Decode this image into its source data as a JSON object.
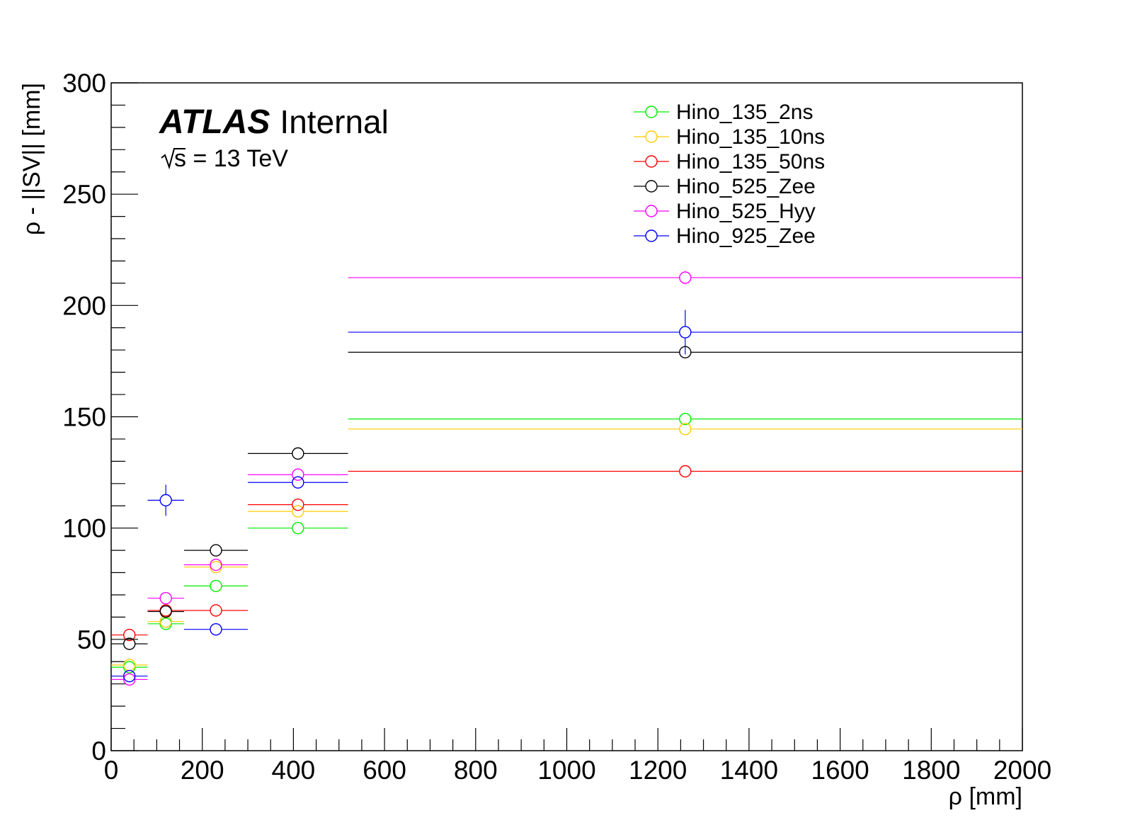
{
  "chart_data": {
    "type": "scatter",
    "xlabel": "ρ [mm]",
    "ylabel": "ρ - ||SV|| [mm]",
    "xlim": [
      0,
      2000
    ],
    "ylim": [
      0,
      300
    ],
    "x_ticks": [
      "0",
      "200",
      "400",
      "600",
      "800",
      "1000",
      "1200",
      "1400",
      "1600",
      "1800",
      "2000"
    ],
    "y_ticks": [
      "0",
      "50",
      "100",
      "150",
      "200",
      "250",
      "300"
    ],
    "grid": false,
    "legend_position": "top-right",
    "atlas_label": {
      "main": "ATLAS",
      "sub": "Internal"
    },
    "energy_label": {
      "sqrt": "s",
      "rest": " = 13 TeV"
    },
    "bins": [
      [
        0,
        80
      ],
      [
        80,
        160
      ],
      [
        160,
        300
      ],
      [
        300,
        520
      ],
      [
        520,
        2000
      ]
    ],
    "bin_centers": [
      40,
      120,
      230,
      410,
      1260
    ],
    "series": [
      {
        "name": "Hino_135_2ns",
        "color": "#00ee00",
        "values": [
          37.5,
          57,
          74,
          100,
          149
        ],
        "errors": [
          0.8,
          1.0,
          1.0,
          1.0,
          1.0
        ]
      },
      {
        "name": "Hino_135_10ns",
        "color": "#ffcc00",
        "values": [
          38.5,
          58,
          82.5,
          107.5,
          144.5
        ],
        "errors": [
          0.8,
          1.0,
          1.0,
          1.0,
          1.0
        ]
      },
      {
        "name": "Hino_135_50ns",
        "color": "#ff0000",
        "values": [
          52,
          63,
          63,
          110.5,
          125.5
        ],
        "errors": [
          0.8,
          1.0,
          1.0,
          1.0,
          1.5
        ]
      },
      {
        "name": "Hino_525_Zee",
        "color": "#000000",
        "values": [
          48,
          62.5,
          90,
          133.5,
          179
        ],
        "errors": [
          0.8,
          1.0,
          1.0,
          1.0,
          1.5
        ]
      },
      {
        "name": "Hino_525_Hyy",
        "color": "#ff00ff",
        "values": [
          32,
          68.5,
          83.5,
          124,
          212.5
        ],
        "errors": [
          0.8,
          1.0,
          1.0,
          1.0,
          3.0
        ]
      },
      {
        "name": "Hino_925_Zee",
        "color": "#0000ff",
        "values": [
          33.5,
          112.5,
          54.5,
          120.5,
          188
        ],
        "errors": [
          0.8,
          7.0,
          1.0,
          1.0,
          10.0
        ]
      }
    ]
  }
}
